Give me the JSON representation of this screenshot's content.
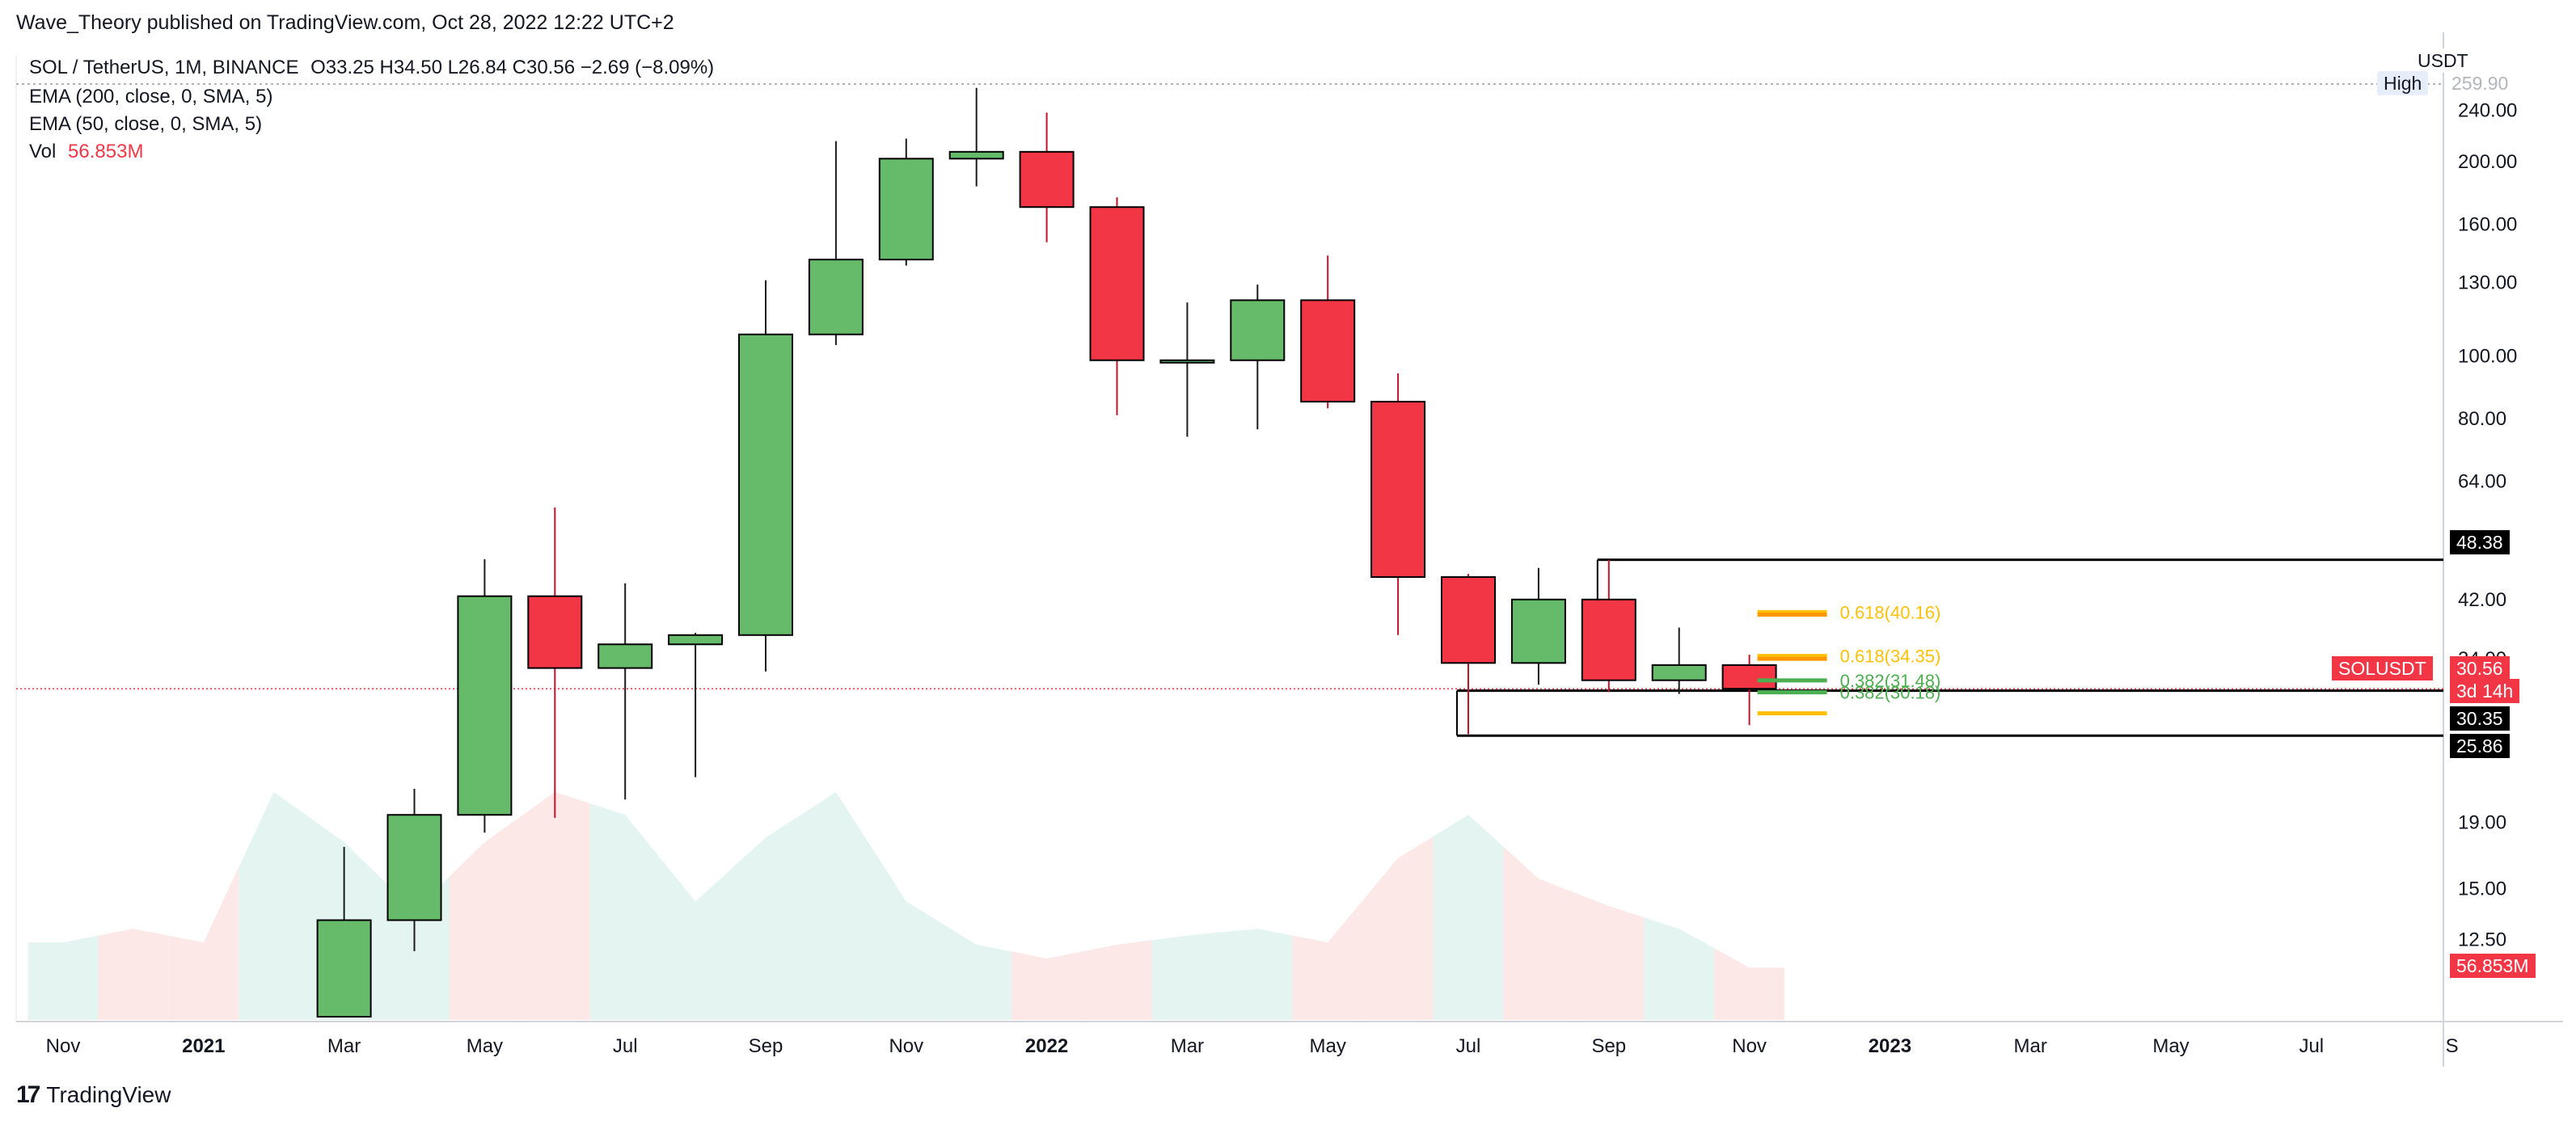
{
  "header": {
    "published_by": "Wave_Theory published on TradingView.com, Oct 28, 2022 12:22 UTC+2"
  },
  "legend": {
    "symbol": "SOL / TetherUS, 1M, BINANCE",
    "ohlc": "O33.25  H34.50  L26.84  C30.56  −2.69 (−8.09%)",
    "ema200": "EMA (200, close, 0, SMA, 5)",
    "ema50": "EMA (50, close, 0, SMA, 5)",
    "vol_label": "Vol",
    "vol_value": "56.853M"
  },
  "price_axis": {
    "currency": "USDT",
    "high_label": "High",
    "high_value": "259.90",
    "ticks": [
      "240.00",
      "200.00",
      "160.00",
      "130.00",
      "100.00",
      "80.00",
      "64.00",
      "52.00",
      "42.00",
      "34.00",
      "19.00",
      "15.00",
      "12.50"
    ]
  },
  "tags": {
    "level_top": "48.38",
    "symbol_tag": "SOLUSDT",
    "last_price": "30.56",
    "countdown": "3d 14h",
    "level_mid": "30.35",
    "level_low": "25.86",
    "volume": "56.853M"
  },
  "fib_labels": {
    "upper_a": "0.618(40.16)",
    "upper_b": "0.618(34.35)",
    "upper_c": "0.382(31.48)",
    "upper_d": "0.382(30.18)"
  },
  "colors": {
    "up": "#66bb6a",
    "down": "#f23645",
    "vol_up": "#e3f4f1",
    "vol_down": "#fde8e8",
    "fib_yellow": "#ffc107",
    "fib_orange": "#ff9800",
    "fib_green": "#4caf50"
  },
  "footer": {
    "brand": "TradingView",
    "logo_mark": "17"
  },
  "chart_data": {
    "type": "candlestick",
    "scale": "log",
    "ylim": [
      9.5,
      262
    ],
    "x_ticks": [
      {
        "label": "Nov",
        "bold": false
      },
      {
        "label": "2021",
        "bold": true
      },
      {
        "label": "Mar",
        "bold": false
      },
      {
        "label": "May",
        "bold": false
      },
      {
        "label": "Jul",
        "bold": false
      },
      {
        "label": "Sep",
        "bold": false
      },
      {
        "label": "Nov",
        "bold": false
      },
      {
        "label": "2022",
        "bold": true
      },
      {
        "label": "Mar",
        "bold": false
      },
      {
        "label": "May",
        "bold": false
      },
      {
        "label": "Jul",
        "bold": false
      },
      {
        "label": "Sep",
        "bold": false
      },
      {
        "label": "Nov",
        "bold": false
      },
      {
        "label": "2023",
        "bold": true
      },
      {
        "label": "Mar",
        "bold": false
      },
      {
        "label": "May",
        "bold": false
      },
      {
        "label": "Jul",
        "bold": false
      },
      {
        "label": "S",
        "bold": false
      }
    ],
    "candles": [
      {
        "date": "2021-02",
        "o": 9.5,
        "h": 17.4,
        "l": 9.5,
        "c": 13.4
      },
      {
        "date": "2021-03",
        "o": 13.4,
        "h": 21.4,
        "l": 12.0,
        "c": 19.5
      },
      {
        "date": "2021-04",
        "o": 19.5,
        "h": 48.5,
        "l": 18.3,
        "c": 42.5
      },
      {
        "date": "2021-05",
        "o": 42.5,
        "h": 58.3,
        "l": 19.3,
        "c": 32.9
      },
      {
        "date": "2021-06",
        "o": 32.9,
        "h": 44.5,
        "l": 20.6,
        "c": 35.8
      },
      {
        "date": "2021-07",
        "o": 35.8,
        "h": 37.3,
        "l": 22.3,
        "c": 37.0
      },
      {
        "date": "2021-08",
        "o": 37.0,
        "h": 131.0,
        "l": 32.5,
        "c": 108.0
      },
      {
        "date": "2021-09",
        "o": 108.0,
        "h": 215.0,
        "l": 104.0,
        "c": 141.0
      },
      {
        "date": "2021-10",
        "o": 141.0,
        "h": 217.0,
        "l": 138.0,
        "c": 202.0
      },
      {
        "date": "2021-11",
        "o": 202.0,
        "h": 259.9,
        "l": 183.0,
        "c": 207.0
      },
      {
        "date": "2021-12",
        "o": 207.0,
        "h": 238.0,
        "l": 150.0,
        "c": 170.0
      },
      {
        "date": "2022-01",
        "o": 170.0,
        "h": 176.0,
        "l": 81.0,
        "c": 98.5
      },
      {
        "date": "2022-02",
        "o": 98.5,
        "h": 121.0,
        "l": 75.0,
        "c": 98.5
      },
      {
        "date": "2022-03",
        "o": 98.5,
        "h": 129.0,
        "l": 77.0,
        "c": 122.0
      },
      {
        "date": "2022-04",
        "o": 122.0,
        "h": 143.0,
        "l": 83.0,
        "c": 85.0
      },
      {
        "date": "2022-05",
        "o": 85.0,
        "h": 94.0,
        "l": 37.0,
        "c": 45.5
      },
      {
        "date": "2022-06",
        "o": 45.5,
        "h": 46.0,
        "l": 26.0,
        "c": 33.5
      },
      {
        "date": "2022-07",
        "o": 33.5,
        "h": 47.0,
        "l": 31.0,
        "c": 42.0
      },
      {
        "date": "2022-08",
        "o": 42.0,
        "h": 48.38,
        "l": 30.2,
        "c": 31.5
      },
      {
        "date": "2022-09",
        "o": 31.5,
        "h": 38.0,
        "l": 30.0,
        "c": 33.25
      },
      {
        "date": "2022-10",
        "o": 33.25,
        "h": 34.5,
        "l": 26.84,
        "c": 30.56
      }
    ],
    "volume": [
      {
        "date": "2020-10",
        "v": 0.34,
        "up": true
      },
      {
        "date": "2020-11",
        "v": 0.4,
        "up": false
      },
      {
        "date": "2020-12",
        "v": 0.34,
        "up": false
      },
      {
        "date": "2021-01",
        "v": 1.0,
        "up": true
      },
      {
        "date": "2021-02",
        "v": 0.78,
        "up": true
      },
      {
        "date": "2021-03",
        "v": 0.48,
        "up": true
      },
      {
        "date": "2021-04",
        "v": 0.78,
        "up": false
      },
      {
        "date": "2021-05",
        "v": 1.0,
        "up": false
      },
      {
        "date": "2021-06",
        "v": 0.9,
        "up": true
      },
      {
        "date": "2021-07",
        "v": 0.52,
        "up": true
      },
      {
        "date": "2021-08",
        "v": 0.8,
        "up": true
      },
      {
        "date": "2021-09",
        "v": 1.0,
        "up": true
      },
      {
        "date": "2021-10",
        "v": 0.52,
        "up": true
      },
      {
        "date": "2021-11",
        "v": 0.33,
        "up": true
      },
      {
        "date": "2021-12",
        "v": 0.27,
        "up": false
      },
      {
        "date": "2022-01",
        "v": 0.33,
        "up": false
      },
      {
        "date": "2022-02",
        "v": 0.37,
        "up": true
      },
      {
        "date": "2022-03",
        "v": 0.4,
        "up": true
      },
      {
        "date": "2022-04",
        "v": 0.34,
        "up": false
      },
      {
        "date": "2022-05",
        "v": 0.71,
        "up": false
      },
      {
        "date": "2022-06",
        "v": 0.9,
        "up": true
      },
      {
        "date": "2022-07",
        "v": 0.62,
        "up": false
      },
      {
        "date": "2022-08",
        "v": 0.5,
        "up": false
      },
      {
        "date": "2022-09",
        "v": 0.4,
        "up": true
      },
      {
        "date": "2022-10",
        "v": 0.23,
        "up": false
      }
    ],
    "levels": [
      {
        "name": "level-48",
        "price": 48.38,
        "from": "2022-08"
      },
      {
        "name": "level-30",
        "price": 30.35,
        "from": "2022-06"
      },
      {
        "name": "level-25",
        "price": 25.86,
        "from": "2022-06"
      }
    ],
    "fib_segments": [
      {
        "price": 40.16,
        "color": "fib_yellow",
        "label_key": "upper_a"
      },
      {
        "price": 39.8,
        "color": "fib_orange",
        "label_key": ""
      },
      {
        "price": 34.35,
        "color": "fib_yellow",
        "label_key": "upper_b"
      },
      {
        "price": 34.0,
        "color": "fib_orange",
        "label_key": ""
      },
      {
        "price": 31.48,
        "color": "fib_green",
        "label_key": "upper_c"
      },
      {
        "price": 30.18,
        "color": "fib_green",
        "label_key": "upper_d"
      },
      {
        "price": 28.0,
        "color": "fib_yellow",
        "label_key": ""
      }
    ],
    "last_price": 30.56
  }
}
